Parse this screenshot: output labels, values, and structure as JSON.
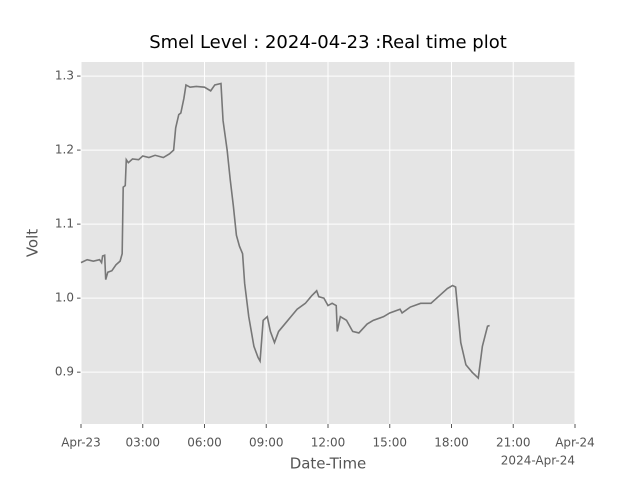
{
  "chart_data": {
    "type": "line",
    "title": "Smel Level : 2024-04-23 :Real time plot",
    "x_label": "Date-Time",
    "y_label": "Volt",
    "x_offset_label": "2024-Apr-24",
    "x": [
      0,
      0.3,
      0.6,
      0.9,
      1.0,
      1.05,
      1.15,
      1.2,
      1.3,
      1.5,
      1.7,
      1.9,
      2.0,
      2.05,
      2.15,
      2.2,
      2.3,
      2.5,
      2.8,
      3.0,
      3.3,
      3.6,
      4.0,
      4.3,
      4.5,
      4.6,
      4.75,
      4.85,
      5.0,
      5.1,
      5.3,
      5.6,
      6.0,
      6.3,
      6.5,
      6.8,
      6.9,
      7.1,
      7.25,
      7.4,
      7.55,
      7.7,
      7.85,
      7.95,
      8.15,
      8.4,
      8.6,
      8.7,
      8.85,
      9.05,
      9.2,
      9.4,
      9.6,
      9.9,
      10.2,
      10.5,
      10.9,
      11.2,
      11.45,
      11.55,
      11.8,
      12.0,
      12.2,
      12.4,
      12.45,
      12.6,
      12.9,
      13.2,
      13.5,
      13.9,
      14.2,
      14.7,
      15.0,
      15.5,
      15.6,
      16.0,
      16.5,
      17.0,
      17.4,
      17.8,
      18.05,
      18.2,
      18.3,
      18.45,
      18.7,
      19.0,
      19.3,
      19.5,
      19.75,
      19.85
    ],
    "series": [
      {
        "name": "Volt",
        "color": "#777777",
        "values": [
          1.048,
          1.052,
          1.05,
          1.052,
          1.048,
          1.057,
          1.058,
          1.025,
          1.035,
          1.037,
          1.045,
          1.05,
          1.06,
          1.15,
          1.152,
          1.187,
          1.183,
          1.188,
          1.187,
          1.192,
          1.19,
          1.193,
          1.19,
          1.195,
          1.2,
          1.23,
          1.248,
          1.25,
          1.27,
          1.288,
          1.285,
          1.286,
          1.285,
          1.28,
          1.288,
          1.29,
          1.24,
          1.2,
          1.16,
          1.125,
          1.085,
          1.07,
          1.06,
          1.02,
          0.975,
          0.935,
          0.92,
          0.915,
          0.97,
          0.975,
          0.955,
          0.94,
          0.955,
          0.965,
          0.975,
          0.985,
          0.993,
          1.003,
          1.01,
          1.002,
          1.0,
          0.99,
          0.993,
          0.99,
          0.955,
          0.975,
          0.97,
          0.955,
          0.953,
          0.965,
          0.97,
          0.975,
          0.98,
          0.985,
          0.98,
          0.988,
          0.993,
          0.993,
          1.003,
          1.013,
          1.017,
          1.015,
          0.985,
          0.94,
          0.91,
          0.9,
          0.892,
          0.935,
          0.962,
          0.963
        ]
      }
    ],
    "xlim": [
      0,
      24
    ],
    "ylim": [
      0.83,
      1.319
    ],
    "xticks": [
      {
        "value": 0,
        "label": "Apr-23"
      },
      {
        "value": 3,
        "label": "03:00"
      },
      {
        "value": 6,
        "label": "06:00"
      },
      {
        "value": 9,
        "label": "09:00"
      },
      {
        "value": 12,
        "label": "12:00"
      },
      {
        "value": 15,
        "label": "15:00"
      },
      {
        "value": 18,
        "label": "18:00"
      },
      {
        "value": 21,
        "label": "21:00"
      },
      {
        "value": 24,
        "label": "Apr-24"
      }
    ],
    "yticks": [
      {
        "value": 0.9,
        "label": "0.9"
      },
      {
        "value": 1.0,
        "label": "1.0"
      },
      {
        "value": 1.1,
        "label": "1.1"
      },
      {
        "value": 1.2,
        "label": "1.2"
      },
      {
        "value": 1.3,
        "label": "1.3"
      }
    ],
    "grid": true,
    "background": "#e5e5e5"
  }
}
